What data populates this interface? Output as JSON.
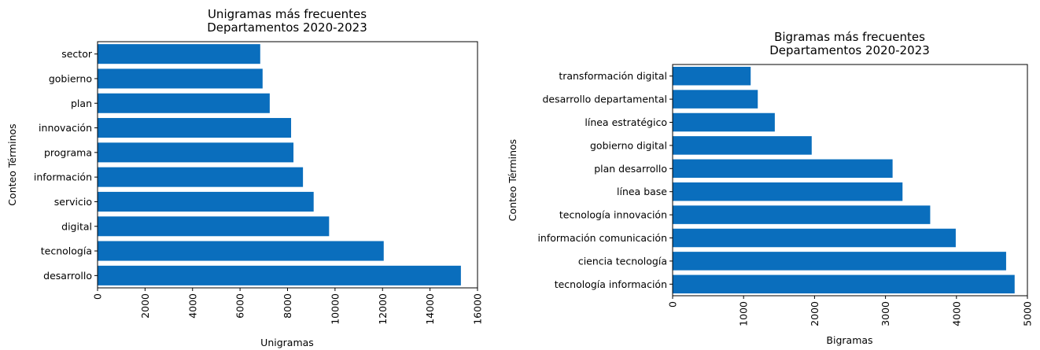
{
  "chart_data": [
    {
      "type": "bar",
      "orientation": "horizontal",
      "title_lines": [
        "Unigramas más frecuentes",
        "Departamentos 2020-2023"
      ],
      "xlabel": "Unigramas",
      "ylabel": "Conteo Términos",
      "xlim": [
        0,
        16000
      ],
      "xticks": [
        0,
        2000,
        4000,
        6000,
        8000,
        10000,
        12000,
        14000,
        16000
      ],
      "grid": false,
      "bar_color": "#0a6ebd",
      "categories": [
        "desarrollo",
        "tecnología",
        "digital",
        "servicio",
        "información",
        "programa",
        "innovación",
        "plan",
        "gobierno",
        "sector"
      ],
      "values": [
        15300,
        12050,
        9750,
        9100,
        8650,
        8250,
        8150,
        7250,
        6950,
        6850
      ]
    },
    {
      "type": "bar",
      "orientation": "horizontal",
      "title_lines": [
        "Bigramas más frecuentes",
        "Departamentos 2020-2023"
      ],
      "xlabel": "Bigramas",
      "ylabel": "Conteo Términos",
      "xlim": [
        0,
        5000
      ],
      "xticks": [
        0,
        1000,
        2000,
        3000,
        4000,
        5000
      ],
      "grid": false,
      "bar_color": "#0a6ebd",
      "categories": [
        "tecnología información",
        "ciencia tecnología",
        "información comunicación",
        "tecnología innovación",
        "línea base",
        "plan desarrollo",
        "gobierno digital",
        "línea estratégico",
        "desarrollo departamental",
        "transformación digital"
      ],
      "values": [
        4820,
        4700,
        3990,
        3630,
        3240,
        3100,
        1960,
        1440,
        1200,
        1100
      ]
    }
  ]
}
